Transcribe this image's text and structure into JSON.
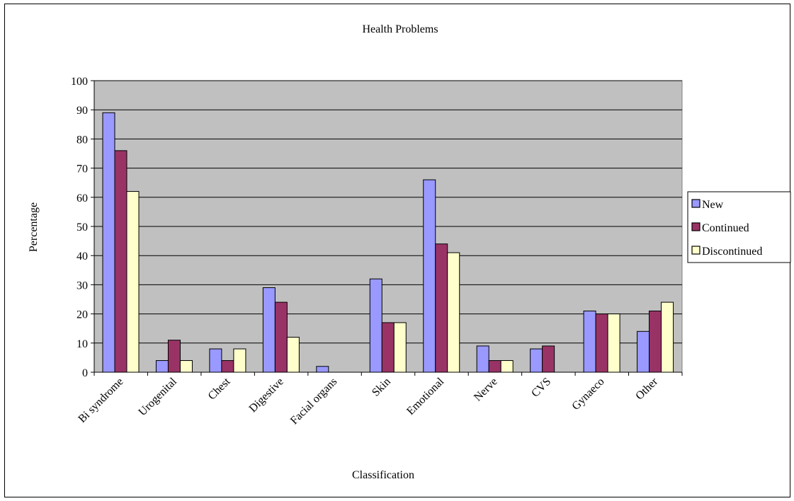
{
  "chart_data": {
    "type": "bar",
    "title": "Health Problems",
    "xlabel": "Classification",
    "ylabel": "Percentage",
    "categories": [
      "Bi syndrome",
      "Urogenital",
      "Chest",
      "Digestive",
      "Facial organs",
      "Skin",
      "Emotional",
      "Nerve",
      "CVS",
      "Gynaeco",
      "Other"
    ],
    "series": [
      {
        "name": "New",
        "color": "#9999ff",
        "values": [
          89,
          4,
          8,
          29,
          2,
          32,
          66,
          9,
          8,
          21,
          14
        ]
      },
      {
        "name": "Continued",
        "color": "#993366",
        "values": [
          76,
          11,
          4,
          24,
          0,
          17,
          44,
          4,
          9,
          20,
          21
        ]
      },
      {
        "name": "Discontinued",
        "color": "#ffffcc",
        "values": [
          62,
          4,
          8,
          12,
          0,
          17,
          41,
          4,
          0,
          20,
          24
        ]
      }
    ],
    "ylim": [
      0,
      100
    ],
    "yticks": [
      0,
      10,
      20,
      30,
      40,
      50,
      60,
      70,
      80,
      90,
      100
    ],
    "grid": true,
    "plot_background": "#c0c0c0",
    "legend_position": "right"
  }
}
